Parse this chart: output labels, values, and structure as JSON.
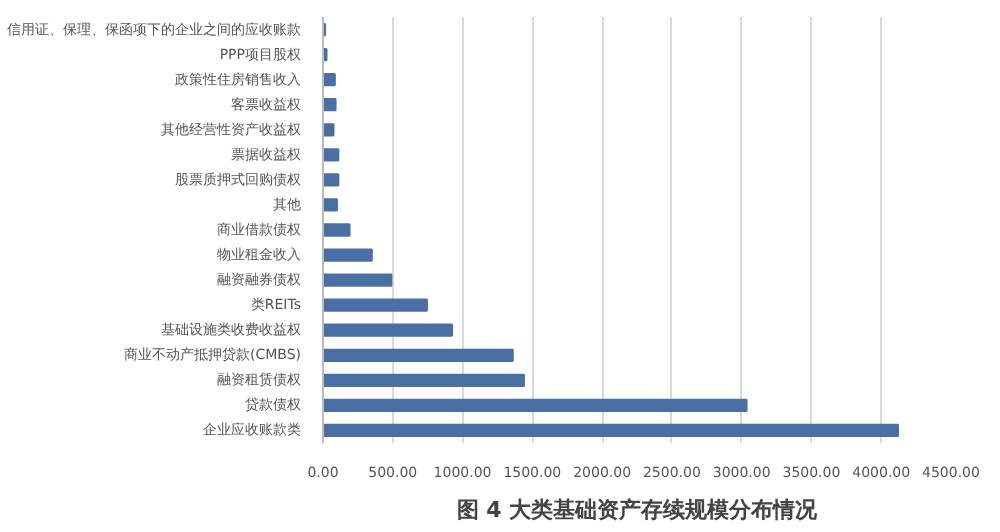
{
  "chart_data": {
    "type": "bar",
    "orientation": "horizontal",
    "title": "图 4 大类基础资产存续规模分布情况",
    "categories": [
      "信用证、保理、保函项下的企业之间的应收账款",
      "PPP项目股权",
      "政策性住房销售收入",
      "客票收益权",
      "其他经营性资产收益权",
      "票据收益权",
      "股票质押式回购债权",
      "其他",
      "商业借款债权",
      "物业租金收入",
      "融资融券债权",
      "类REITs",
      "基础设施类收费收益权",
      "商业不动产抵押贷款(CMBS)",
      "融资租赁债权",
      "贷款债权",
      "企业应收账款类"
    ],
    "values": [
      15,
      25,
      85,
      90,
      75,
      110,
      110,
      100,
      190,
      350,
      490,
      745,
      925,
      1360,
      1440,
      3035,
      4120
    ],
    "color": "#4a6fa5",
    "xlim": [
      0,
      4500
    ],
    "xticks": [
      {
        "value": 0,
        "label": "0.00"
      },
      {
        "value": 500,
        "label": "500.00"
      },
      {
        "value": 1000,
        "label": "1000.00"
      },
      {
        "value": 1500,
        "label": "1500.00"
      },
      {
        "value": 2000,
        "label": "2000.00"
      },
      {
        "value": 2500,
        "label": "2500.00"
      },
      {
        "value": 3000,
        "label": "3000.00"
      },
      {
        "value": 3500,
        "label": "3500.00"
      },
      {
        "value": 4000,
        "label": "4000.00"
      },
      {
        "value": 4500,
        "label": "4500.00"
      }
    ],
    "grid": "x"
  }
}
